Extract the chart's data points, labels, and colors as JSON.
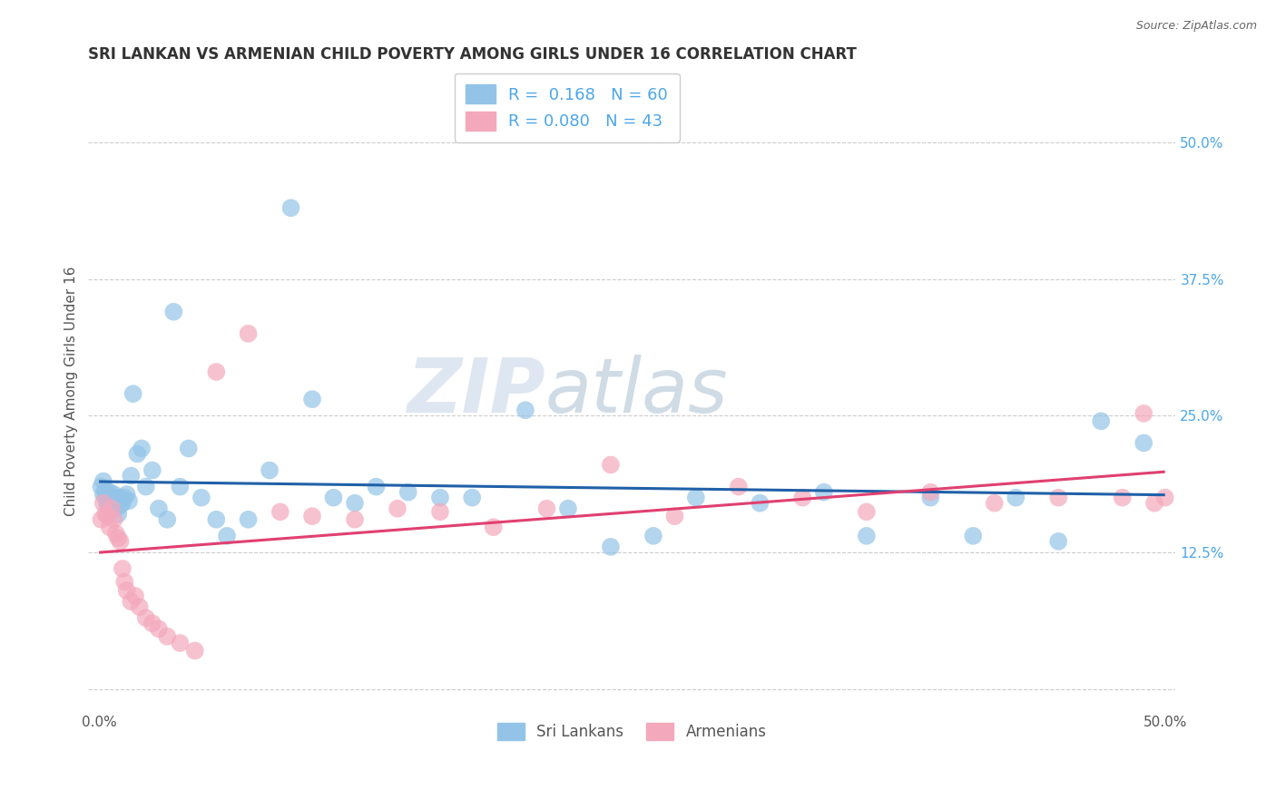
{
  "title": "SRI LANKAN VS ARMENIAN CHILD POVERTY AMONG GIRLS UNDER 16 CORRELATION CHART",
  "source": "Source: ZipAtlas.com",
  "ylabel": "Child Poverty Among Girls Under 16",
  "xlim": [
    -0.005,
    0.505
  ],
  "ylim": [
    -0.02,
    0.565
  ],
  "xticks": [
    0.0,
    0.125,
    0.25,
    0.375,
    0.5
  ],
  "xticklabels": [
    "0.0%",
    "",
    "",
    "",
    "50.0%"
  ],
  "yticks_right": [
    0.125,
    0.25,
    0.375,
    0.5
  ],
  "yticklabels_right": [
    "12.5%",
    "25.0%",
    "37.5%",
    "50.0%"
  ],
  "grid_lines": [
    0.0,
    0.125,
    0.25,
    0.375,
    0.5
  ],
  "sri_lankan_color": "#93c4e8",
  "armenian_color": "#f4a8bc",
  "sri_lankan_line_color": "#2060a8",
  "armenian_line_color": "#e04070",
  "sri_lankan_R": 0.168,
  "sri_lankan_N": 60,
  "armenian_R": 0.08,
  "armenian_N": 43,
  "watermark_zip": "ZIP",
  "watermark_atlas": "atlas",
  "background_color": "#ffffff",
  "sri_lankan_x": [
    0.001,
    0.002,
    0.002,
    0.003,
    0.003,
    0.004,
    0.004,
    0.005,
    0.005,
    0.006,
    0.006,
    0.007,
    0.007,
    0.008,
    0.008,
    0.009,
    0.01,
    0.01,
    0.011,
    0.012,
    0.013,
    0.014,
    0.015,
    0.016,
    0.018,
    0.02,
    0.022,
    0.025,
    0.028,
    0.032,
    0.035,
    0.038,
    0.042,
    0.048,
    0.055,
    0.06,
    0.07,
    0.08,
    0.09,
    0.1,
    0.11,
    0.12,
    0.13,
    0.145,
    0.16,
    0.175,
    0.2,
    0.22,
    0.24,
    0.26,
    0.28,
    0.31,
    0.34,
    0.36,
    0.39,
    0.41,
    0.43,
    0.45,
    0.47,
    0.49
  ],
  "sri_lankan_y": [
    0.185,
    0.19,
    0.178,
    0.175,
    0.182,
    0.172,
    0.168,
    0.18,
    0.175,
    0.17,
    0.165,
    0.178,
    0.168,
    0.175,
    0.165,
    0.16,
    0.175,
    0.168,
    0.17,
    0.175,
    0.178,
    0.172,
    0.195,
    0.27,
    0.215,
    0.22,
    0.185,
    0.2,
    0.165,
    0.155,
    0.345,
    0.185,
    0.22,
    0.175,
    0.155,
    0.14,
    0.155,
    0.2,
    0.44,
    0.265,
    0.175,
    0.17,
    0.185,
    0.18,
    0.175,
    0.175,
    0.255,
    0.165,
    0.13,
    0.14,
    0.175,
    0.17,
    0.18,
    0.14,
    0.175,
    0.14,
    0.175,
    0.135,
    0.245,
    0.225
  ],
  "armenian_x": [
    0.001,
    0.002,
    0.003,
    0.004,
    0.005,
    0.006,
    0.007,
    0.008,
    0.009,
    0.01,
    0.011,
    0.012,
    0.013,
    0.015,
    0.017,
    0.019,
    0.022,
    0.025,
    0.028,
    0.032,
    0.038,
    0.045,
    0.055,
    0.07,
    0.085,
    0.1,
    0.12,
    0.14,
    0.16,
    0.185,
    0.21,
    0.24,
    0.27,
    0.3,
    0.33,
    0.36,
    0.39,
    0.42,
    0.45,
    0.48,
    0.49,
    0.495,
    0.5
  ],
  "armenian_y": [
    0.155,
    0.17,
    0.16,
    0.158,
    0.148,
    0.165,
    0.155,
    0.142,
    0.138,
    0.135,
    0.11,
    0.098,
    0.09,
    0.08,
    0.085,
    0.075,
    0.065,
    0.06,
    0.055,
    0.048,
    0.042,
    0.035,
    0.29,
    0.325,
    0.162,
    0.158,
    0.155,
    0.165,
    0.162,
    0.148,
    0.165,
    0.205,
    0.158,
    0.185,
    0.175,
    0.162,
    0.18,
    0.17,
    0.175,
    0.175,
    0.252,
    0.17,
    0.175
  ]
}
